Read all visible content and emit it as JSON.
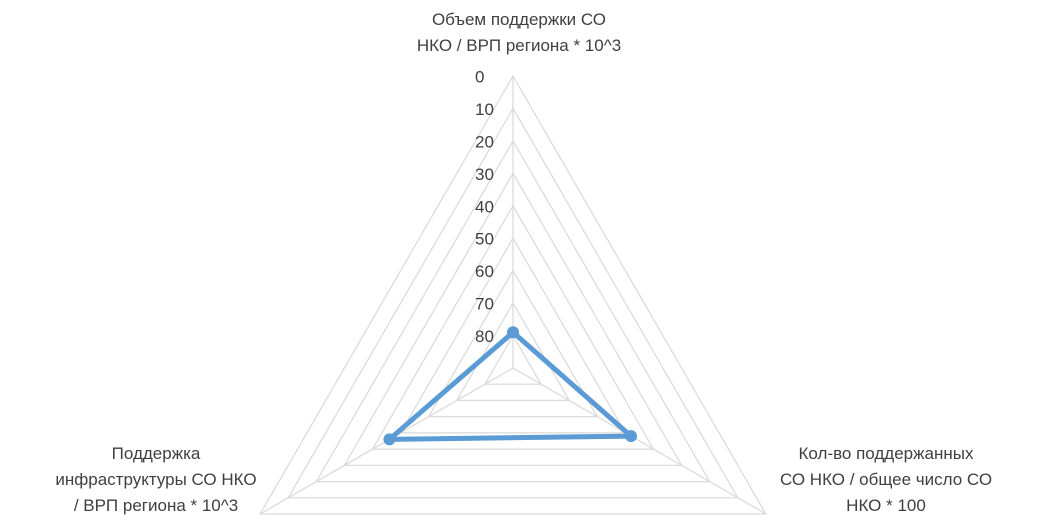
{
  "chart_data": {
    "type": "radar",
    "axes": [
      "Объем поддержки СО\nНКО / ВРП региона * 10^3",
      "Кол-во поддержанных\nСО НКО / общее число СО\nНКО * 100",
      "Поддержка\nинфраструктуры СО НКО\n/ ВРП региона * 10^3"
    ],
    "scale": {
      "min": 0,
      "max": 80,
      "reversed": true
    },
    "tick_labels": [
      "0",
      "10",
      "20",
      "30",
      "40",
      "50",
      "60",
      "70",
      "80"
    ],
    "series": [
      {
        "values": [
          79,
          48,
          46
        ]
      }
    ],
    "colors": {
      "series": "#5B9BD5",
      "grid": "#d9d9d9",
      "text": "#404040"
    },
    "grid": true,
    "legend": "none"
  }
}
